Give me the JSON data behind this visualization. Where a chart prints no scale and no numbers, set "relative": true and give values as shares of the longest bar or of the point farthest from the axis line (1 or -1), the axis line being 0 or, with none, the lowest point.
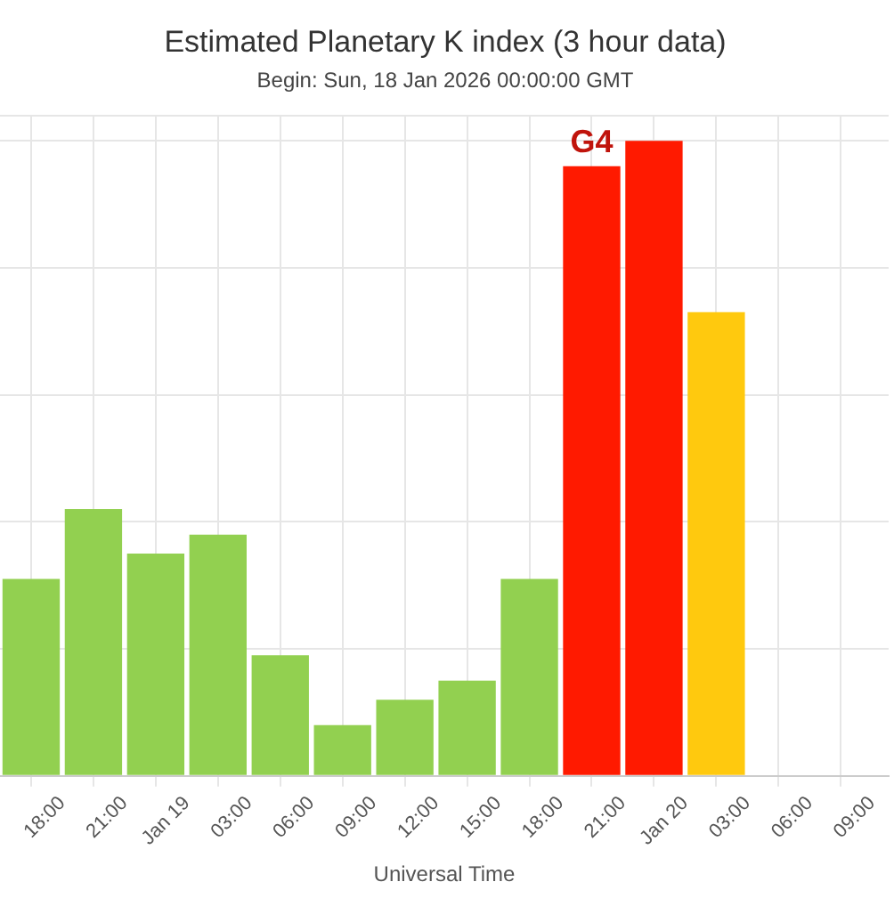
{
  "chart_data": {
    "type": "bar",
    "title": "Estimated Planetary K index (3 hour data)",
    "subtitle": "Begin: Sun, 18 Jan 2026 00:00:00 GMT",
    "xlabel": "Universal Time",
    "relative": true,
    "x": [
      "2026-01-18T16:30",
      "2026-01-18T19:30",
      "2026-01-18T22:30",
      "2026-01-19T01:30",
      "2026-01-19T04:30",
      "2026-01-19T07:30",
      "2026-01-19T10:30",
      "2026-01-19T13:30",
      "2026-01-19T16:30",
      "2026-01-19T19:30",
      "2026-01-19T22:30",
      "2026-01-20T01:30"
    ],
    "values": [
      0.31,
      0.42,
      0.35,
      0.38,
      0.19,
      0.08,
      0.12,
      0.15,
      0.31,
      0.96,
      1,
      0.73
    ],
    "colors": [
      "#92d050",
      "#92d050",
      "#92d050",
      "#92d050",
      "#92d050",
      "#92d050",
      "#92d050",
      "#92d050",
      "#92d050",
      "#ff1a00",
      "#ff1a00",
      "#ffc90e"
    ],
    "xlim": [
      "2026-01-18T15:00",
      "2026-01-20T09:48"
    ],
    "xticks": [
      {
        "value": "2026-01-18T18:00",
        "label": "18:00"
      },
      {
        "value": "2026-01-18T21:00",
        "label": "21:00"
      },
      {
        "value": "2026-01-19T00:00",
        "label": "Jan 19"
      },
      {
        "value": "2026-01-19T03:00",
        "label": "03:00"
      },
      {
        "value": "2026-01-19T06:00",
        "label": "06:00"
      },
      {
        "value": "2026-01-19T09:00",
        "label": "09:00"
      },
      {
        "value": "2026-01-19T12:00",
        "label": "12:00"
      },
      {
        "value": "2026-01-19T15:00",
        "label": "15:00"
      },
      {
        "value": "2026-01-19T18:00",
        "label": "18:00"
      },
      {
        "value": "2026-01-19T21:00",
        "label": "21:00"
      },
      {
        "value": "2026-01-20T00:00",
        "label": "Jan 20"
      },
      {
        "value": "2026-01-20T03:00",
        "label": "03:00"
      },
      {
        "value": "2026-01-20T06:00",
        "label": "06:00"
      },
      {
        "value": "2026-01-20T09:00",
        "label": "09:00"
      }
    ],
    "annotations": [
      {
        "text": "G4",
        "x": "2026-01-19T19:30",
        "y": 0.96
      }
    ],
    "grid": true
  }
}
